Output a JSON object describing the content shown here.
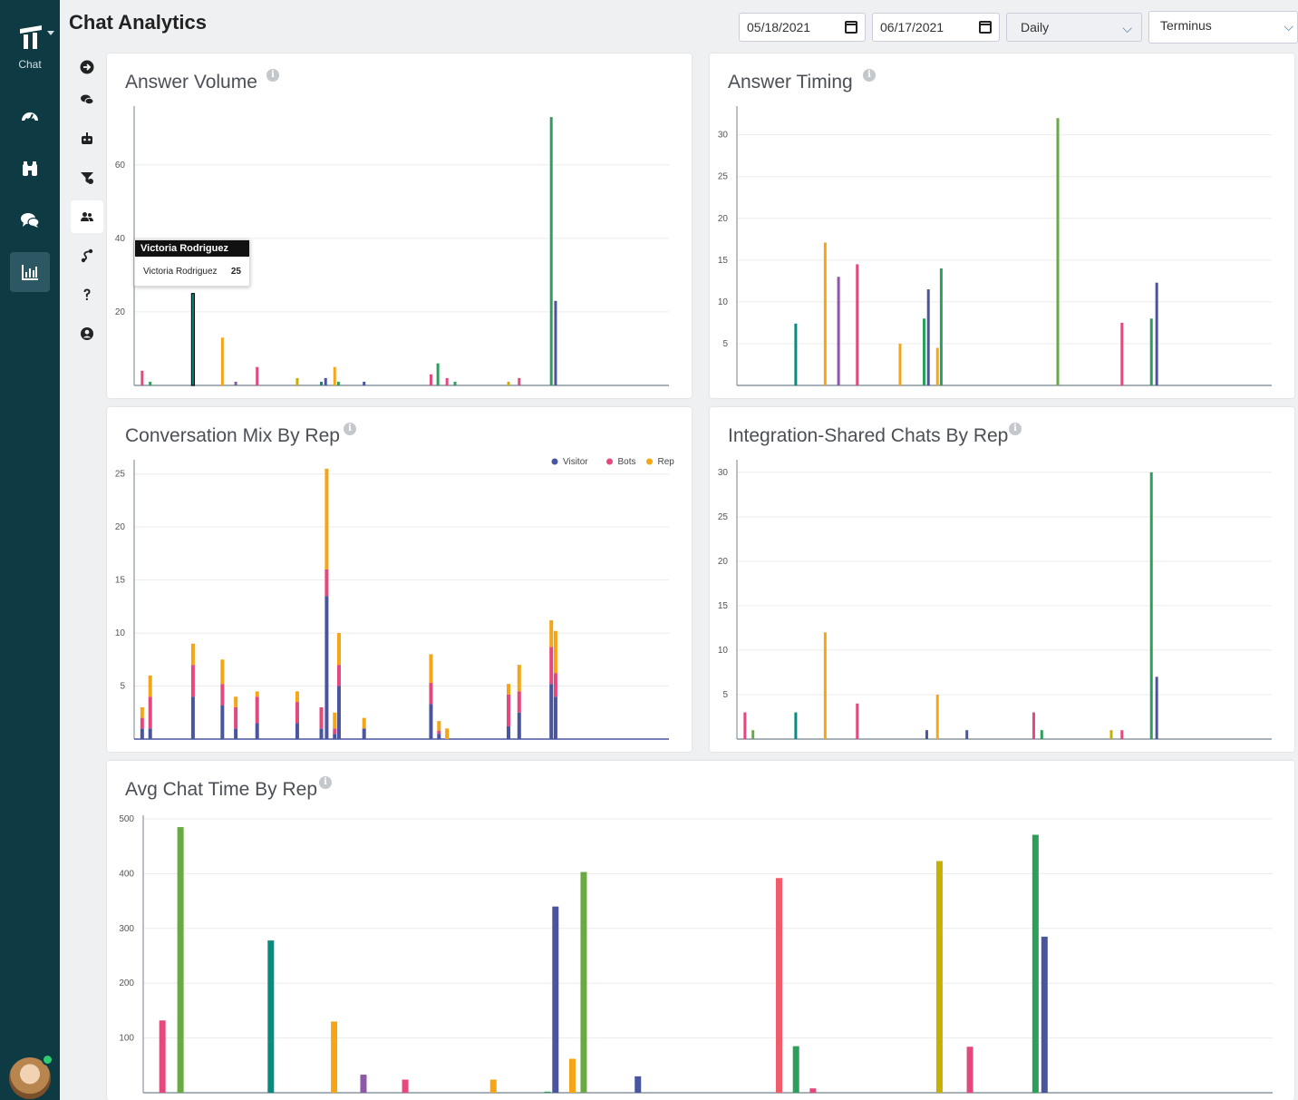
{
  "app": {
    "nav_label": "Chat"
  },
  "page": {
    "title": "Chat Analytics"
  },
  "filters": {
    "start_date": "05/18/2021",
    "end_date": "06/17/2021",
    "interval": "Daily",
    "team": "Terminus"
  },
  "colors": {
    "green": "#2e9e5b",
    "lime": "#6aaa44",
    "teal": "#0a8a80",
    "orange": "#f5a516",
    "pink": "#e5487c",
    "purple": "#8e57a8",
    "navy": "#4a55a0",
    "yellow": "#c8b000",
    "coral": "#f25c6a"
  },
  "tooltip": {
    "title": "Victoria Rodriguez",
    "label": "Victoria Rodriguez",
    "value": "25"
  },
  "chart_data": [
    {
      "id": "answer_volume",
      "type": "bar",
      "title": "Answer Volume",
      "ylim": [
        0,
        75
      ],
      "yticks": [
        20,
        40,
        60
      ],
      "x_domain": [
        0,
        100
      ],
      "bars": [
        {
          "x": 1.5,
          "value": 4,
          "color": "pink"
        },
        {
          "x": 3,
          "value": 1,
          "color": "green"
        },
        {
          "x": 11,
          "value": 25,
          "color": "teal",
          "highlight": true
        },
        {
          "x": 16.5,
          "value": 13,
          "color": "orange"
        },
        {
          "x": 19,
          "value": 1,
          "color": "purple"
        },
        {
          "x": 23,
          "value": 5,
          "color": "pink"
        },
        {
          "x": 30.5,
          "value": 2,
          "color": "yellow"
        },
        {
          "x": 35,
          "value": 1,
          "color": "teal"
        },
        {
          "x": 35.8,
          "value": 2,
          "color": "navy"
        },
        {
          "x": 37.5,
          "value": 5,
          "color": "orange"
        },
        {
          "x": 38.2,
          "value": 1,
          "color": "green"
        },
        {
          "x": 43,
          "value": 1,
          "color": "navy"
        },
        {
          "x": 55.5,
          "value": 3,
          "color": "pink"
        },
        {
          "x": 56.8,
          "value": 6,
          "color": "green"
        },
        {
          "x": 58.5,
          "value": 2,
          "color": "pink"
        },
        {
          "x": 60,
          "value": 1,
          "color": "green"
        },
        {
          "x": 70,
          "value": 1,
          "color": "yellow"
        },
        {
          "x": 72,
          "value": 2,
          "color": "pink"
        },
        {
          "x": 78,
          "value": 73,
          "color": "green"
        },
        {
          "x": 78.8,
          "value": 23,
          "color": "navy"
        }
      ]
    },
    {
      "id": "answer_timing",
      "type": "bar",
      "title": "Answer Timing",
      "ylim": [
        0,
        33
      ],
      "yticks": [
        5,
        10,
        15,
        20,
        25,
        30
      ],
      "x_domain": [
        0,
        100
      ],
      "bars": [
        {
          "x": 11,
          "value": 7.4,
          "color": "teal"
        },
        {
          "x": 16.5,
          "value": 17.1,
          "color": "orange"
        },
        {
          "x": 19,
          "value": 13,
          "color": "purple"
        },
        {
          "x": 22.5,
          "value": 14.5,
          "color": "pink"
        },
        {
          "x": 30.5,
          "value": 5,
          "color": "orange"
        },
        {
          "x": 35,
          "value": 8,
          "color": "green"
        },
        {
          "x": 35.8,
          "value": 11.5,
          "color": "navy"
        },
        {
          "x": 37.5,
          "value": 4.5,
          "color": "orange"
        },
        {
          "x": 38.2,
          "value": 14,
          "color": "green"
        },
        {
          "x": 60,
          "value": 32,
          "color": "lime"
        },
        {
          "x": 72,
          "value": 7.5,
          "color": "pink"
        },
        {
          "x": 77.5,
          "value": 8,
          "color": "green"
        },
        {
          "x": 78.5,
          "value": 12.3,
          "color": "navy"
        }
      ]
    },
    {
      "id": "conversation_mix",
      "type": "stacked_bar",
      "title": "Conversation Mix By Rep",
      "ylim": [
        0,
        26
      ],
      "yticks": [
        5,
        10,
        15,
        20,
        25
      ],
      "x_domain": [
        0,
        100
      ],
      "legend": [
        {
          "name": "Visitor",
          "color": "navy"
        },
        {
          "name": "Bots",
          "color": "pink"
        },
        {
          "name": "Rep",
          "color": "orange"
        }
      ],
      "stacks": [
        {
          "x": 1.5,
          "visitor": 1,
          "bots": 1,
          "rep": 1
        },
        {
          "x": 3,
          "visitor": 1,
          "bots": 3,
          "rep": 2
        },
        {
          "x": 11,
          "visitor": 4,
          "bots": 3,
          "rep": 2
        },
        {
          "x": 16.5,
          "visitor": 3.2,
          "bots": 2,
          "rep": 2.3
        },
        {
          "x": 19,
          "visitor": 1,
          "bots": 2,
          "rep": 1
        },
        {
          "x": 23,
          "visitor": 1.5,
          "bots": 2.5,
          "rep": 0.5
        },
        {
          "x": 30.5,
          "visitor": 1.5,
          "bots": 2,
          "rep": 1
        },
        {
          "x": 35,
          "visitor": 1,
          "bots": 2,
          "rep": 0
        },
        {
          "x": 36,
          "visitor": 13.5,
          "bots": 2.5,
          "rep": 9.5
        },
        {
          "x": 37.5,
          "visitor": 0.5,
          "bots": 0.5,
          "rep": 1.5
        },
        {
          "x": 38.3,
          "visitor": 5,
          "bots": 2,
          "rep": 3
        },
        {
          "x": 43,
          "visitor": 1,
          "bots": 0,
          "rep": 1
        },
        {
          "x": 55.5,
          "visitor": 3.3,
          "bots": 2,
          "rep": 2.7
        },
        {
          "x": 57,
          "visitor": 0.5,
          "bots": 0.3,
          "rep": 0.9
        },
        {
          "x": 58.5,
          "visitor": 0,
          "bots": 0,
          "rep": 1
        },
        {
          "x": 70,
          "visitor": 1.2,
          "bots": 3,
          "rep": 1
        },
        {
          "x": 72,
          "visitor": 2.5,
          "bots": 2,
          "rep": 2.5
        },
        {
          "x": 78,
          "visitor": 5.2,
          "bots": 3.5,
          "rep": 2.5
        },
        {
          "x": 78.8,
          "visitor": 4,
          "bots": 2.2,
          "rep": 4
        }
      ]
    },
    {
      "id": "integration_shared",
      "type": "bar",
      "title": "Integration-Shared Chats By Rep",
      "ylim": [
        0,
        31
      ],
      "yticks": [
        5,
        10,
        15,
        20,
        25,
        30
      ],
      "x_domain": [
        0,
        100
      ],
      "bars": [
        {
          "x": 1.5,
          "value": 3,
          "color": "pink"
        },
        {
          "x": 3,
          "value": 1,
          "color": "lime"
        },
        {
          "x": 11,
          "value": 3,
          "color": "teal"
        },
        {
          "x": 16.5,
          "value": 12,
          "color": "orange"
        },
        {
          "x": 22.5,
          "value": 4,
          "color": "pink"
        },
        {
          "x": 35.5,
          "value": 1,
          "color": "navy"
        },
        {
          "x": 37.5,
          "value": 5,
          "color": "orange"
        },
        {
          "x": 43,
          "value": 1,
          "color": "navy"
        },
        {
          "x": 55.5,
          "value": 3,
          "color": "pink"
        },
        {
          "x": 57,
          "value": 1,
          "color": "green"
        },
        {
          "x": 70,
          "value": 1,
          "color": "yellow"
        },
        {
          "x": 72,
          "value": 1,
          "color": "pink"
        },
        {
          "x": 77.5,
          "value": 30,
          "color": "green"
        },
        {
          "x": 78.5,
          "value": 7,
          "color": "navy"
        }
      ]
    },
    {
      "id": "avg_chat_time",
      "type": "bar",
      "title": "Avg Chat Time By Rep",
      "ylim": [
        0,
        500
      ],
      "yticks": [
        100,
        200,
        300,
        400,
        500
      ],
      "x_domain": [
        0,
        100
      ],
      "bars": [
        {
          "x": 1.7,
          "value": 132,
          "color": "pink"
        },
        {
          "x": 3.3,
          "value": 485,
          "color": "lime"
        },
        {
          "x": 11.3,
          "value": 278,
          "color": "teal"
        },
        {
          "x": 16.9,
          "value": 130,
          "color": "orange"
        },
        {
          "x": 19.5,
          "value": 33,
          "color": "purple"
        },
        {
          "x": 23.2,
          "value": 24,
          "color": "pink"
        },
        {
          "x": 31,
          "value": 24,
          "color": "orange"
        },
        {
          "x": 35.8,
          "value": 2,
          "color": "green"
        },
        {
          "x": 36.5,
          "value": 340,
          "color": "navy"
        },
        {
          "x": 38,
          "value": 62,
          "color": "orange"
        },
        {
          "x": 39,
          "value": 403,
          "color": "lime"
        },
        {
          "x": 43.8,
          "value": 30,
          "color": "navy"
        },
        {
          "x": 56.3,
          "value": 392,
          "color": "coral"
        },
        {
          "x": 57.8,
          "value": 85,
          "color": "green"
        },
        {
          "x": 59.3,
          "value": 8,
          "color": "pink"
        },
        {
          "x": 70.5,
          "value": 423,
          "color": "yellow"
        },
        {
          "x": 73.2,
          "value": 84,
          "color": "pink"
        },
        {
          "x": 79,
          "value": 471,
          "color": "green"
        },
        {
          "x": 79.8,
          "value": 285,
          "color": "navy"
        }
      ]
    }
  ]
}
